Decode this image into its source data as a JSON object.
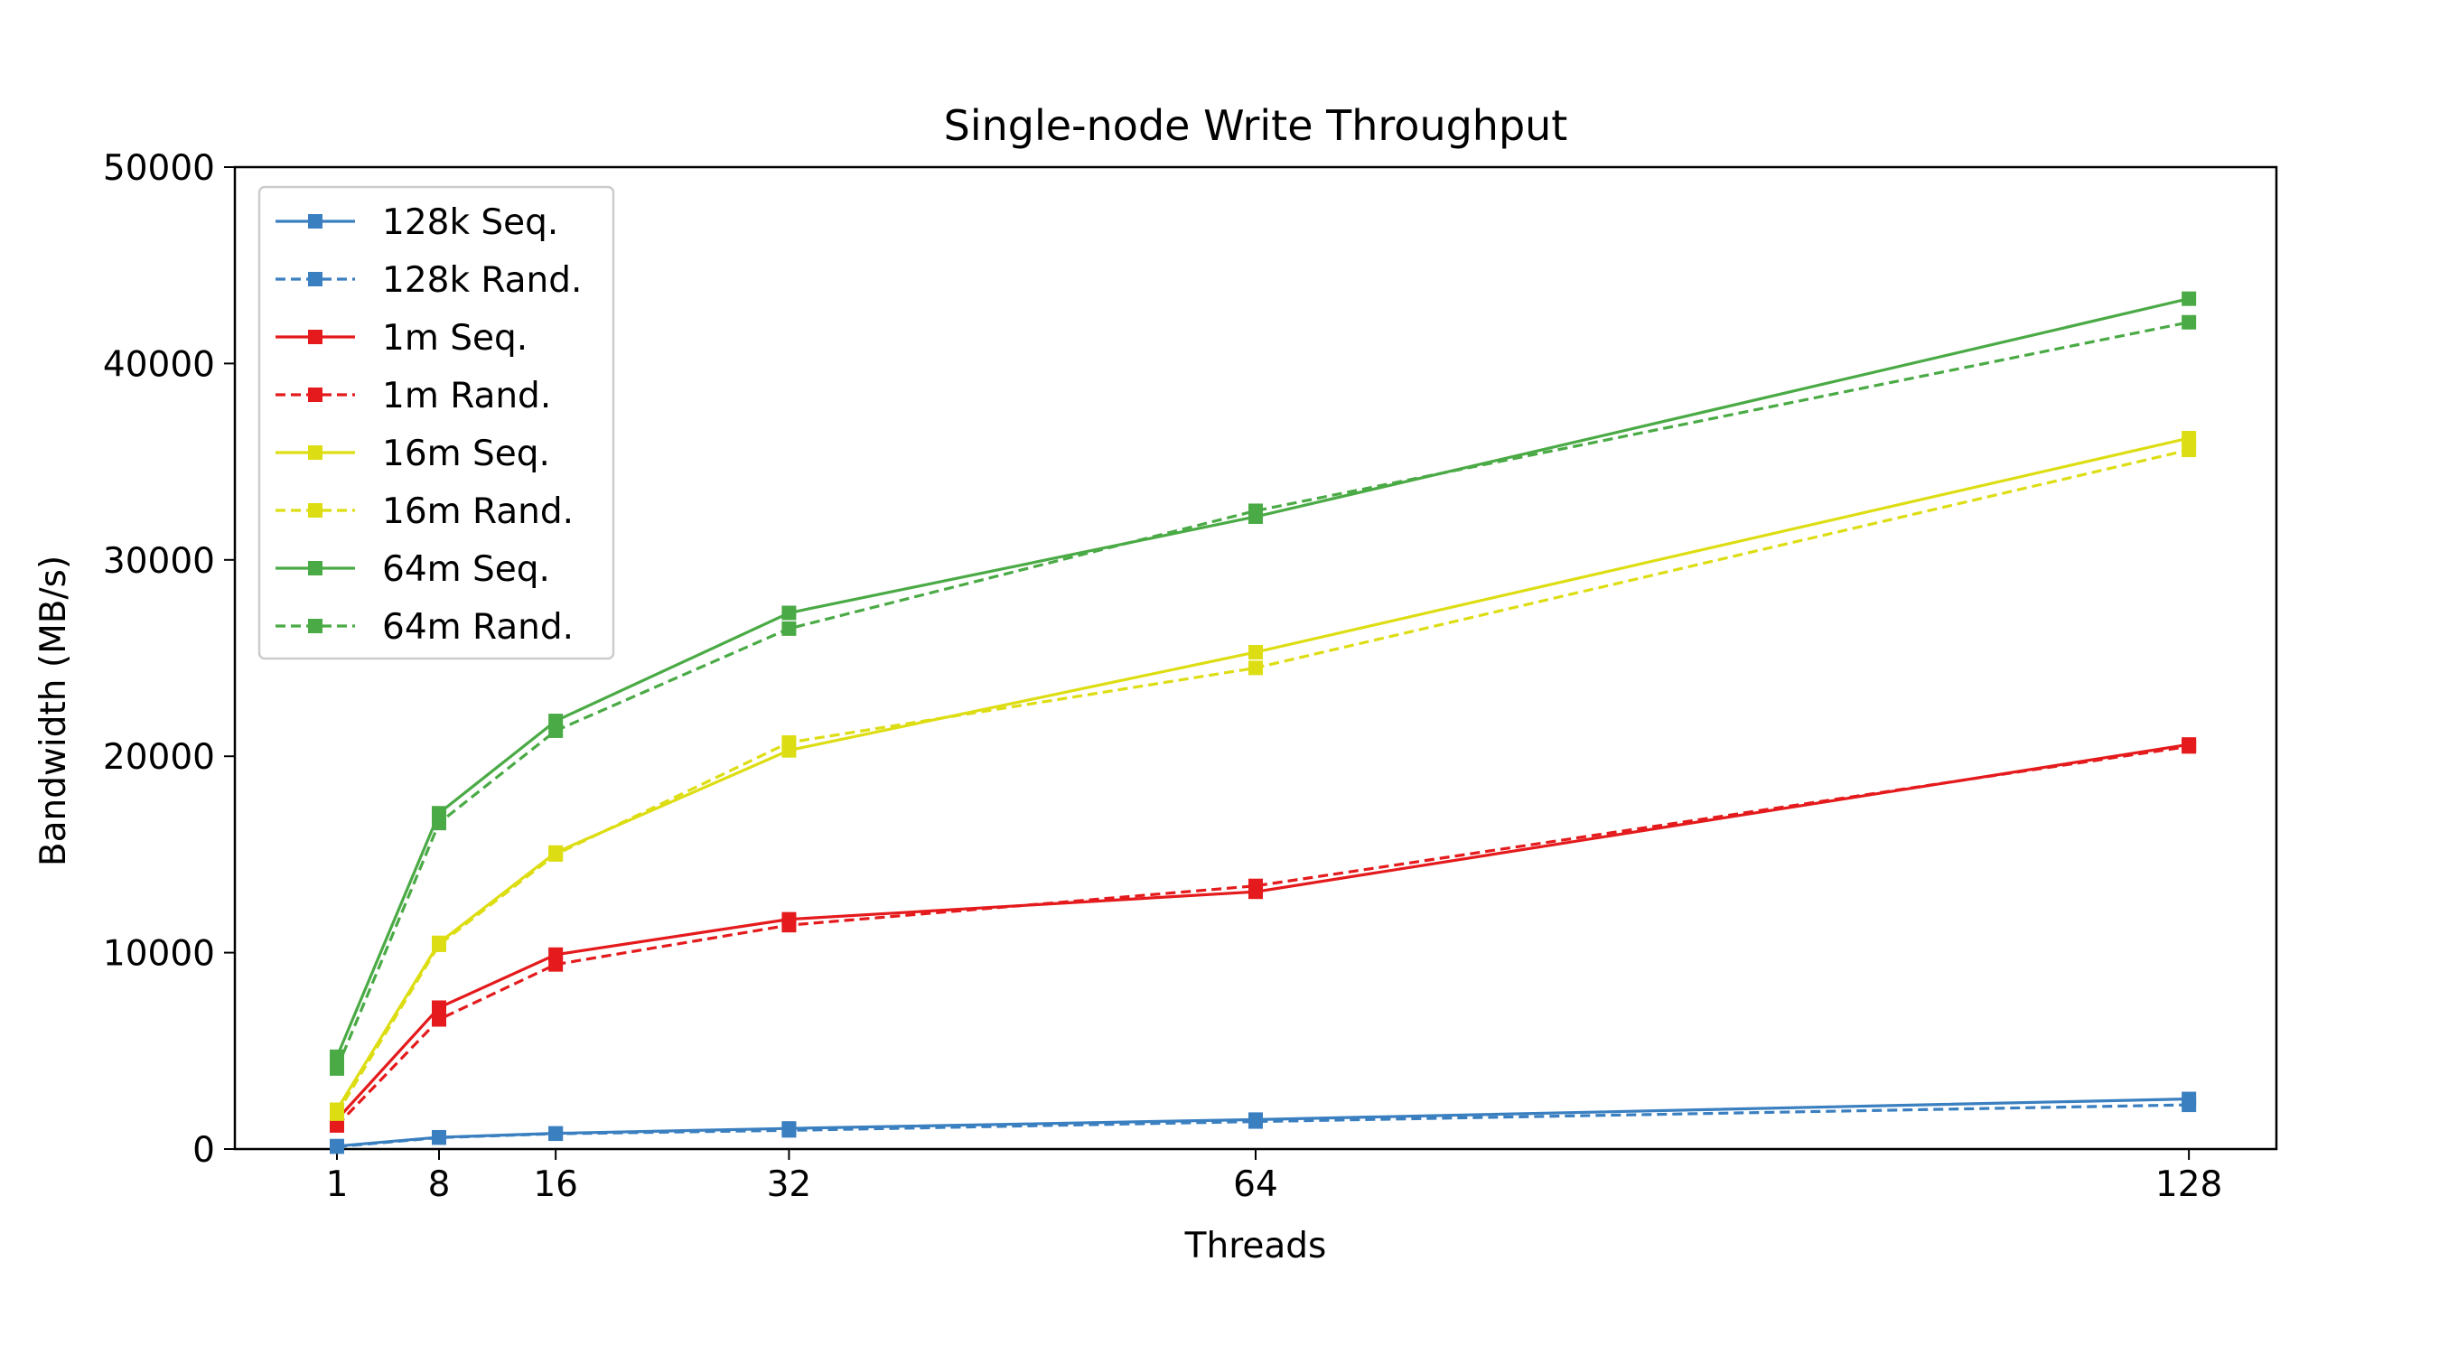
{
  "chart_data": {
    "type": "line",
    "title": "Single-node Write Throughput",
    "xlabel": "Threads",
    "ylabel": "Bandwidth (MB/s)",
    "x": [
      1,
      8,
      16,
      32,
      64,
      128
    ],
    "x_ticks": [
      "1",
      "8",
      "16",
      "32",
      "64",
      "128"
    ],
    "xlim": [
      -6,
      134
    ],
    "ylim": [
      0,
      50000
    ],
    "y_ticks": [
      "0",
      "10000",
      "20000",
      "30000",
      "40000",
      "50000"
    ],
    "grid": false,
    "legend_position": "top-left",
    "marker": "square",
    "series": [
      {
        "name": "128k Seq.",
        "color": "#3a7fc0",
        "style": "solid",
        "values": [
          150,
          600,
          800,
          1050,
          1500,
          2550
        ]
      },
      {
        "name": "128k Rand.",
        "color": "#3a7fc0",
        "style": "dashed",
        "values": [
          120,
          580,
          780,
          950,
          1400,
          2250
        ]
      },
      {
        "name": "1m Seq.",
        "color": "#e41a1c",
        "style": "solid",
        "values": [
          1500,
          7200,
          9900,
          11700,
          13100,
          20600
        ]
      },
      {
        "name": "1m Rand.",
        "color": "#e41a1c",
        "style": "dashed",
        "values": [
          1200,
          6600,
          9400,
          11400,
          13400,
          20500
        ]
      },
      {
        "name": "16m Seq.",
        "color": "#dddd13",
        "style": "solid",
        "values": [
          2000,
          10500,
          15100,
          20300,
          25300,
          36200
        ]
      },
      {
        "name": "16m Rand.",
        "color": "#dddd13",
        "style": "dashed",
        "values": [
          1800,
          10400,
          15000,
          20700,
          24500,
          35600
        ]
      },
      {
        "name": "64m Seq.",
        "color": "#4aaa45",
        "style": "solid",
        "values": [
          4700,
          17100,
          21800,
          27300,
          32200,
          43300
        ]
      },
      {
        "name": "64m Rand.",
        "color": "#4aaa45",
        "style": "dashed",
        "values": [
          4100,
          16600,
          21300,
          26500,
          32500,
          42100
        ]
      }
    ]
  }
}
